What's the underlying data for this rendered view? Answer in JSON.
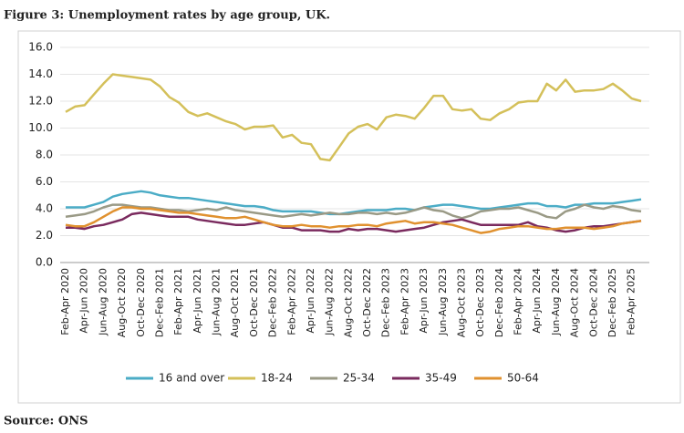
{
  "title": "Figure 3: Unemployment rates by age group, UK.",
  "source": "Source: ONS",
  "chart_data": {
    "type": "line",
    "categories": [
      "Feb-Apr 2020",
      null,
      "Apr-Jun 2020",
      null,
      "Jun-Aug 2020",
      null,
      "Aug-Oct 2020",
      null,
      "Oct-Dec 2020",
      null,
      "Dec-Feb 2021",
      null,
      "Feb-Apr 2021",
      null,
      "Apr-Jun 2021",
      null,
      "Jun-Aug 2021",
      null,
      "Aug-Oct 2021",
      null,
      "Oct-Dec 2021",
      null,
      "Dec-Feb 2022",
      null,
      "Feb-Apr 2022",
      null,
      "Apr-Jun 2022",
      null,
      "Jun-Aug 2022",
      null,
      "Aug-Oct 2022",
      null,
      "Oct-Dec 2022",
      null,
      "Dec-Feb 2023",
      null,
      "Feb-Apr 2023",
      null,
      "Apr-Jun 2023",
      null,
      "Jun-Aug 2023",
      null,
      "Aug-Oct 2023",
      null,
      "Oct-Dec 2023",
      null,
      "Dec-Feb 2024",
      null,
      "Feb-Apr 2024",
      null,
      "Apr-Jun 2024",
      null,
      "Jun-Aug 2024",
      null,
      "Aug-Oct 2024",
      null,
      "Oct-Dec 2024",
      null,
      "Dec-Feb 2025",
      null,
      "Feb-Apr 2025",
      null
    ],
    "series": [
      {
        "name": "16 and over",
        "color": "#4bacc6",
        "values": [
          4.1,
          4.1,
          4.1,
          4.3,
          4.5,
          4.9,
          5.1,
          5.2,
          5.3,
          5.2,
          5.0,
          4.9,
          4.8,
          4.8,
          4.7,
          4.6,
          4.5,
          4.4,
          4.3,
          4.2,
          4.2,
          4.1,
          3.9,
          3.8,
          3.8,
          3.8,
          3.8,
          3.7,
          3.6,
          3.6,
          3.7,
          3.8,
          3.9,
          3.9,
          3.9,
          4.0,
          4.0,
          3.9,
          4.1,
          4.2,
          4.3,
          4.3,
          4.2,
          4.1,
          4.0,
          4.0,
          4.1,
          4.2,
          4.3,
          4.4,
          4.4,
          4.2,
          4.2,
          4.1,
          4.3,
          4.3,
          4.4,
          4.4,
          4.4,
          4.5,
          4.6,
          4.7
        ]
      },
      {
        "name": "18-24",
        "color": "#d4c05a",
        "values": [
          11.2,
          11.6,
          11.7,
          12.5,
          13.3,
          14.0,
          13.9,
          13.8,
          13.7,
          13.6,
          13.1,
          12.3,
          11.9,
          11.2,
          10.9,
          11.1,
          10.8,
          10.5,
          10.3,
          9.9,
          10.1,
          10.1,
          10.2,
          9.3,
          9.5,
          8.9,
          8.8,
          7.7,
          7.6,
          8.6,
          9.6,
          10.1,
          10.3,
          9.9,
          10.8,
          11.0,
          10.9,
          10.7,
          11.5,
          12.4,
          12.4,
          11.4,
          11.3,
          11.4,
          10.7,
          10.6,
          11.1,
          11.4,
          11.9,
          12.0,
          12.0,
          13.3,
          12.8,
          13.6,
          12.7,
          12.8,
          12.8,
          12.9,
          13.3,
          12.8,
          12.2,
          12.0
        ]
      },
      {
        "name": "25-34",
        "color": "#9a9a86",
        "values": [
          3.4,
          3.5,
          3.6,
          3.8,
          4.1,
          4.3,
          4.3,
          4.2,
          4.1,
          4.1,
          4.0,
          3.9,
          3.9,
          3.8,
          3.9,
          4.0,
          3.9,
          4.1,
          3.9,
          3.8,
          3.7,
          3.6,
          3.5,
          3.4,
          3.5,
          3.6,
          3.5,
          3.6,
          3.7,
          3.6,
          3.6,
          3.7,
          3.7,
          3.6,
          3.7,
          3.6,
          3.7,
          3.9,
          4.1,
          3.9,
          3.8,
          3.5,
          3.3,
          3.5,
          3.8,
          3.9,
          4.0,
          4.0,
          4.1,
          3.9,
          3.7,
          3.4,
          3.3,
          3.8,
          4.0,
          4.3,
          4.1,
          4.0,
          4.2,
          4.1,
          3.9,
          3.8
        ]
      },
      {
        "name": "35-49",
        "color": "#7a2a5e",
        "values": [
          2.6,
          2.6,
          2.5,
          2.7,
          2.8,
          3.0,
          3.2,
          3.6,
          3.7,
          3.6,
          3.5,
          3.4,
          3.4,
          3.4,
          3.2,
          3.1,
          3.0,
          2.9,
          2.8,
          2.8,
          2.9,
          3.0,
          2.8,
          2.6,
          2.6,
          2.4,
          2.4,
          2.4,
          2.3,
          2.3,
          2.5,
          2.4,
          2.5,
          2.5,
          2.4,
          2.3,
          2.4,
          2.5,
          2.6,
          2.8,
          3.0,
          3.1,
          3.2,
          3.0,
          2.8,
          2.8,
          2.8,
          2.8,
          2.8,
          3.0,
          2.7,
          2.6,
          2.4,
          2.3,
          2.4,
          2.6,
          2.7,
          2.7,
          2.8,
          2.9,
          3.0,
          3.1
        ]
      },
      {
        "name": "50-64",
        "color": "#e0912f",
        "values": [
          2.8,
          2.7,
          2.7,
          3.0,
          3.4,
          3.8,
          4.1,
          4.1,
          4.0,
          4.0,
          3.9,
          3.8,
          3.7,
          3.7,
          3.6,
          3.5,
          3.4,
          3.3,
          3.3,
          3.4,
          3.2,
          3.0,
          2.8,
          2.7,
          2.7,
          2.8,
          2.7,
          2.7,
          2.6,
          2.7,
          2.7,
          2.8,
          2.8,
          2.7,
          2.9,
          3.0,
          3.1,
          2.9,
          3.0,
          3.0,
          2.9,
          2.8,
          2.6,
          2.4,
          2.2,
          2.3,
          2.5,
          2.6,
          2.7,
          2.7,
          2.6,
          2.5,
          2.5,
          2.6,
          2.6,
          2.6,
          2.5,
          2.6,
          2.7,
          2.9,
          3.0,
          3.1
        ]
      }
    ],
    "ylim": [
      0,
      16
    ],
    "yticks": [
      {
        "value": 0,
        "label": "0.0"
      },
      {
        "value": 2,
        "label": "2.0"
      },
      {
        "value": 4,
        "label": "4.0"
      },
      {
        "value": 6,
        "label": "6.0"
      },
      {
        "value": 8,
        "label": "8.0"
      },
      {
        "value": 10,
        "label": "10.0"
      },
      {
        "value": 12,
        "label": "12.0"
      },
      {
        "value": 14,
        "label": "14.0"
      },
      {
        "value": 16,
        "label": "16.0"
      }
    ],
    "grid": true,
    "legend": "bottom"
  }
}
